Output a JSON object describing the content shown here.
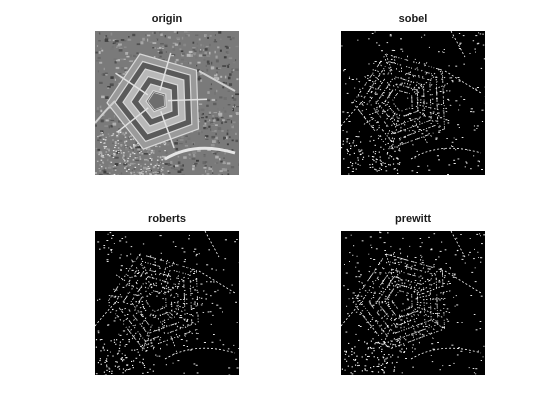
{
  "figure": {
    "panels": [
      {
        "title": "origin",
        "kind": "grayscale-photo",
        "colors": {
          "background": "#7a7a7a"
        }
      },
      {
        "title": "sobel",
        "kind": "edge-map",
        "colors": {
          "background": "#000000",
          "edges": "#ffffff"
        }
      },
      {
        "title": "roberts",
        "kind": "edge-map",
        "colors": {
          "background": "#000000",
          "edges": "#ffffff"
        }
      },
      {
        "title": "prewitt",
        "kind": "edge-map",
        "colors": {
          "background": "#000000",
          "edges": "#ffffff"
        }
      }
    ]
  }
}
